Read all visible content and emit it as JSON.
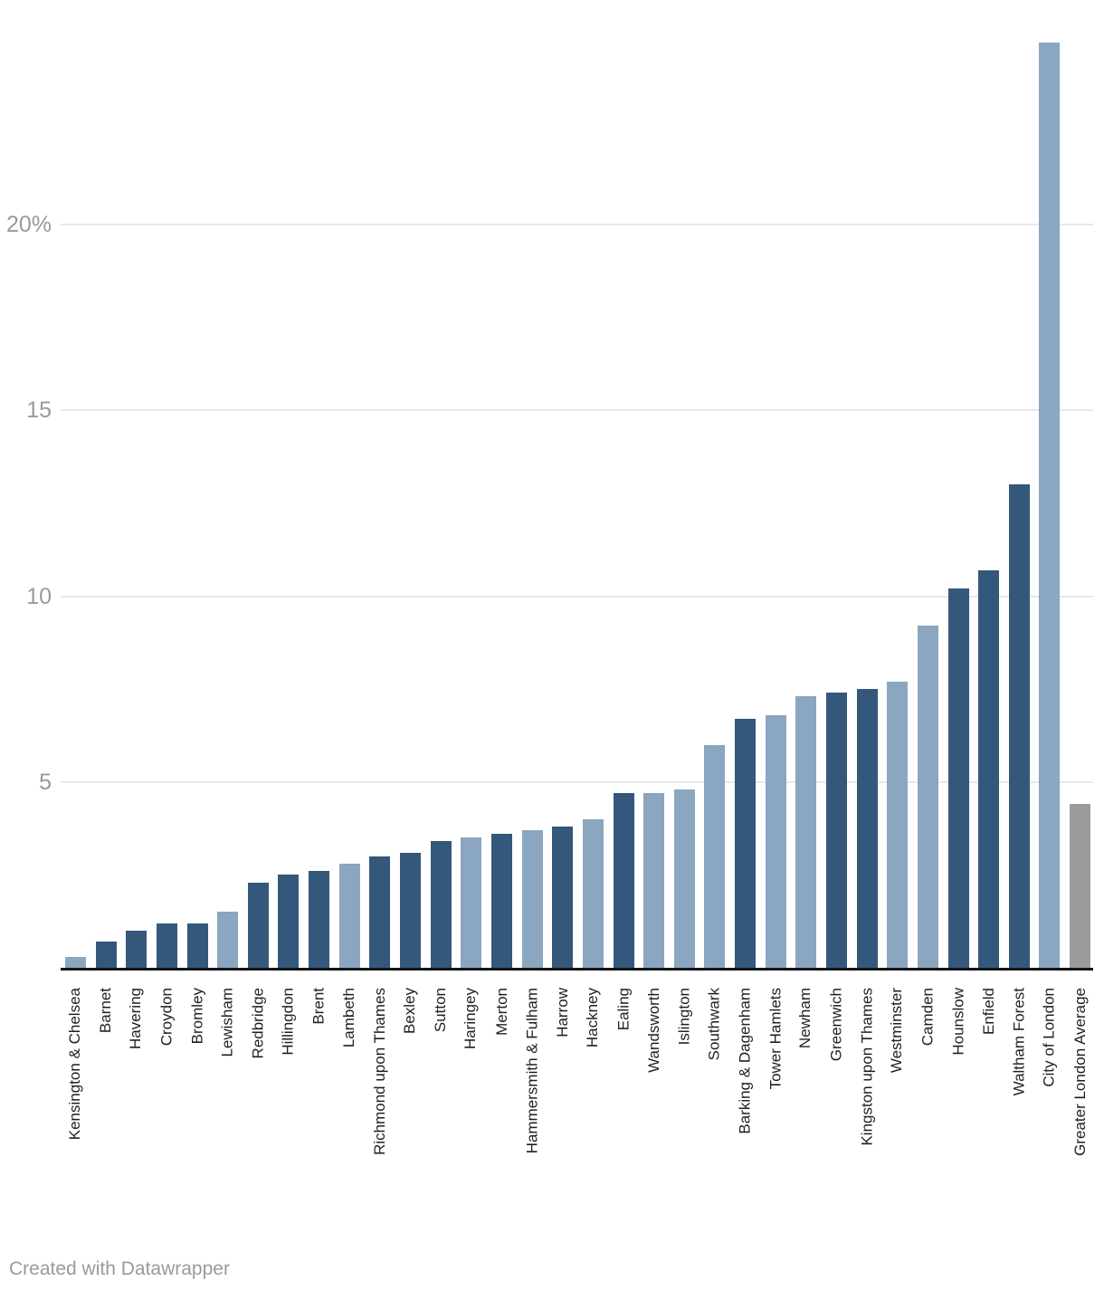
{
  "chart_data": {
    "type": "bar",
    "title": "",
    "xlabel": "",
    "ylabel": "",
    "ylim": [
      0,
      25
    ],
    "grid": true,
    "legend": false,
    "yticks": [
      {
        "value": 5,
        "label": "5"
      },
      {
        "value": 10,
        "label": "10"
      },
      {
        "value": 15,
        "label": "15"
      },
      {
        "value": 20,
        "label": "20%"
      }
    ],
    "categories": [
      "Kensington & Chelsea",
      "Barnet",
      "Havering",
      "Croydon",
      "Bromley",
      "Lewisham",
      "Redbridge",
      "Hillingdon",
      "Brent",
      "Lambeth",
      "Richmond upon Thames",
      "Bexley",
      "Sutton",
      "Haringey",
      "Merton",
      "Hammersmith & Fulham",
      "Harrow",
      "Hackney",
      "Ealing",
      "Wandsworth",
      "Islington",
      "Southwark",
      "Barking & Dagenham",
      "Tower Hamlets",
      "Newham",
      "Greenwich",
      "Kingston upon Thames",
      "Westminster",
      "Camden",
      "Hounslow",
      "Enfield",
      "Waltham Forest",
      "City of London",
      "Greater London Average"
    ],
    "values": [
      0.3,
      0.7,
      1.0,
      1.2,
      1.2,
      1.5,
      2.3,
      2.5,
      2.6,
      2.8,
      3.0,
      3.1,
      3.4,
      3.5,
      3.6,
      3.7,
      3.8,
      4.0,
      4.7,
      4.7,
      4.8,
      6.0,
      6.7,
      6.8,
      7.3,
      7.4,
      7.5,
      7.7,
      9.2,
      10.2,
      10.7,
      13.0,
      24.9,
      4.4
    ],
    "color_key": [
      "light",
      "dark",
      "dark",
      "dark",
      "dark",
      "light",
      "dark",
      "dark",
      "dark",
      "light",
      "dark",
      "dark",
      "dark",
      "light",
      "dark",
      "light",
      "dark",
      "light",
      "dark",
      "light",
      "light",
      "light",
      "dark",
      "light",
      "light",
      "dark",
      "dark",
      "light",
      "light",
      "dark",
      "dark",
      "dark",
      "light",
      "gray"
    ],
    "palette": {
      "dark": "#33587B",
      "light": "#8AA6C0",
      "gray": "#9B9B9B"
    }
  },
  "footer": {
    "credit": "Created with Datawrapper"
  }
}
